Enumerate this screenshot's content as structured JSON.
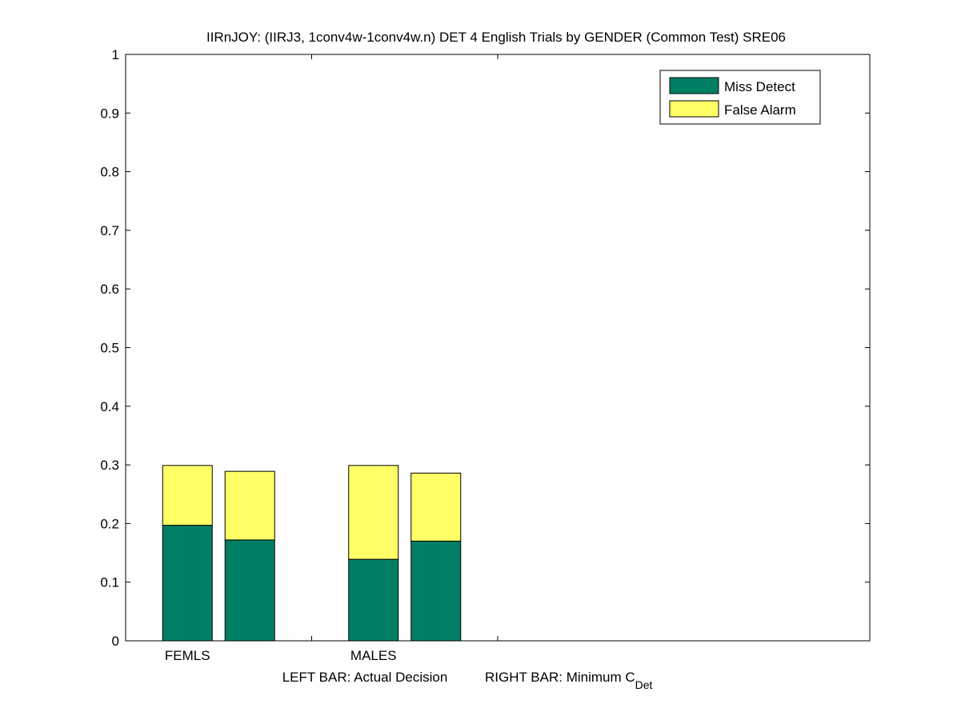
{
  "chart_data": {
    "type": "bar",
    "stacked": true,
    "title": "IIRnJOY: (IIRJ3, 1conv4w-1conv4w.n) DET 4 English Trials by GENDER (Common Test) SRE06",
    "xlabel": {
      "left": "LEFT BAR: Actual Decision",
      "right_prefix": "RIGHT BAR: Minimum C",
      "right_subscript": "Det"
    },
    "categories": [
      "FEMLS",
      "MALES"
    ],
    "bars_per_category": [
      "Actual Decision",
      "Minimum C_Det"
    ],
    "series": [
      {
        "name": "Miss Detect",
        "color": "#007f64",
        "values": [
          [
            0.197,
            0.172
          ],
          [
            0.139,
            0.17
          ]
        ]
      },
      {
        "name": "False Alarm",
        "color": "#ffff66",
        "values": [
          [
            0.102,
            0.117
          ],
          [
            0.16,
            0.116
          ]
        ]
      }
    ],
    "ylim": [
      0,
      1
    ],
    "yticks": [
      "0",
      "0.1",
      "0.2",
      "0.3",
      "0.4",
      "0.5",
      "0.6",
      "0.7",
      "0.8",
      "0.9",
      "1"
    ],
    "grid": false,
    "legend_position": "top-right"
  }
}
